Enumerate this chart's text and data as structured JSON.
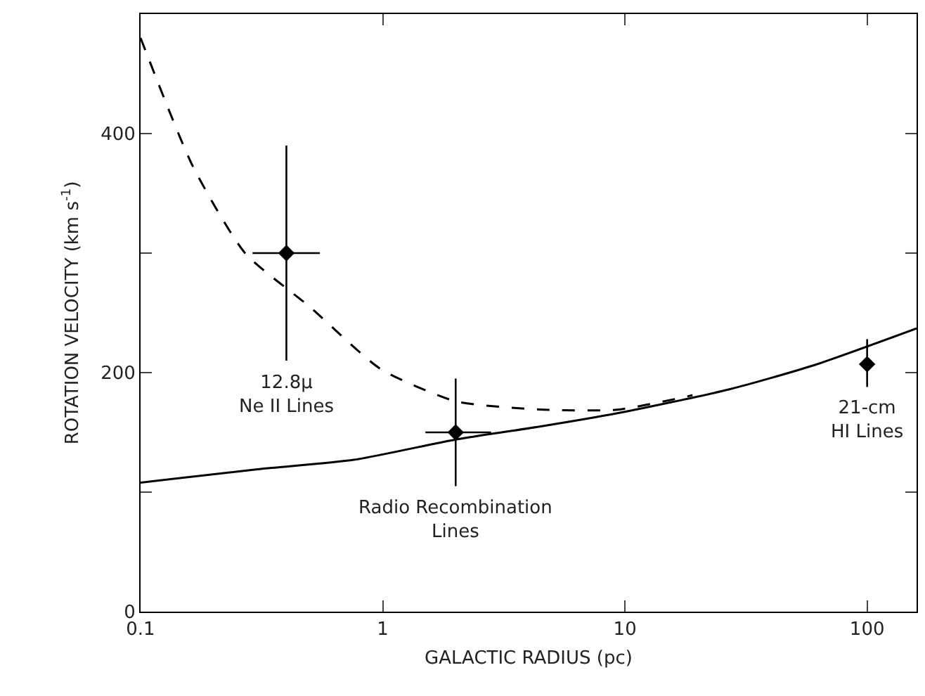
{
  "chart_data": {
    "type": "scatter",
    "xlabel": "GALACTIC RADIUS (pc)",
    "ylabel": "ROTATION VELOCITY (km s$^{-1}$)",
    "log": "x",
    "xlim": [
      0.1,
      160
    ],
    "xticks": [
      0.1,
      1,
      10,
      100
    ],
    "ylim": [
      0,
      500
    ],
    "yticks": [
      0,
      {
        "value": 100,
        "label": null
      },
      200,
      {
        "value": 300,
        "label": null
      },
      400
    ],
    "grid": false,
    "series": [
      {
        "type": "line",
        "color": "#000000",
        "line_style": "solid",
        "marker": "none",
        "x": [
          0.1,
          0.3,
          0.76,
          2,
          4.5,
          9.3,
          27,
          60,
          160
        ],
        "values": [
          108,
          119,
          127,
          144,
          155,
          166,
          186,
          206,
          237
        ]
      },
      {
        "type": "line",
        "color": "#000000",
        "line_style": "dashed",
        "marker": "none",
        "x": [
          0.1,
          0.164,
          0.27,
          0.5,
          0.98,
          2,
          4.6,
          9.3,
          19
        ],
        "values": [
          480,
          373,
          300,
          255,
          203,
          176,
          169,
          169,
          181
        ]
      },
      {
        "color": "#000000",
        "marker": "diamond",
        "x": [
          0.4,
          2,
          100
        ],
        "values": [
          300,
          150,
          207
        ],
        "errors": [
          [
            210,
            390
          ],
          [
            105,
            195
          ],
          [
            188,
            228
          ]
        ],
        "xerrors": [
          [
            0.29,
            0.55
          ],
          [
            1.5,
            2.8
          ],
          null
        ]
      }
    ],
    "annotations": [
      "12.8μ\nNe II Lines",
      "Radio Recombination\nLines",
      "21-cm\nHI Lines"
    ]
  }
}
